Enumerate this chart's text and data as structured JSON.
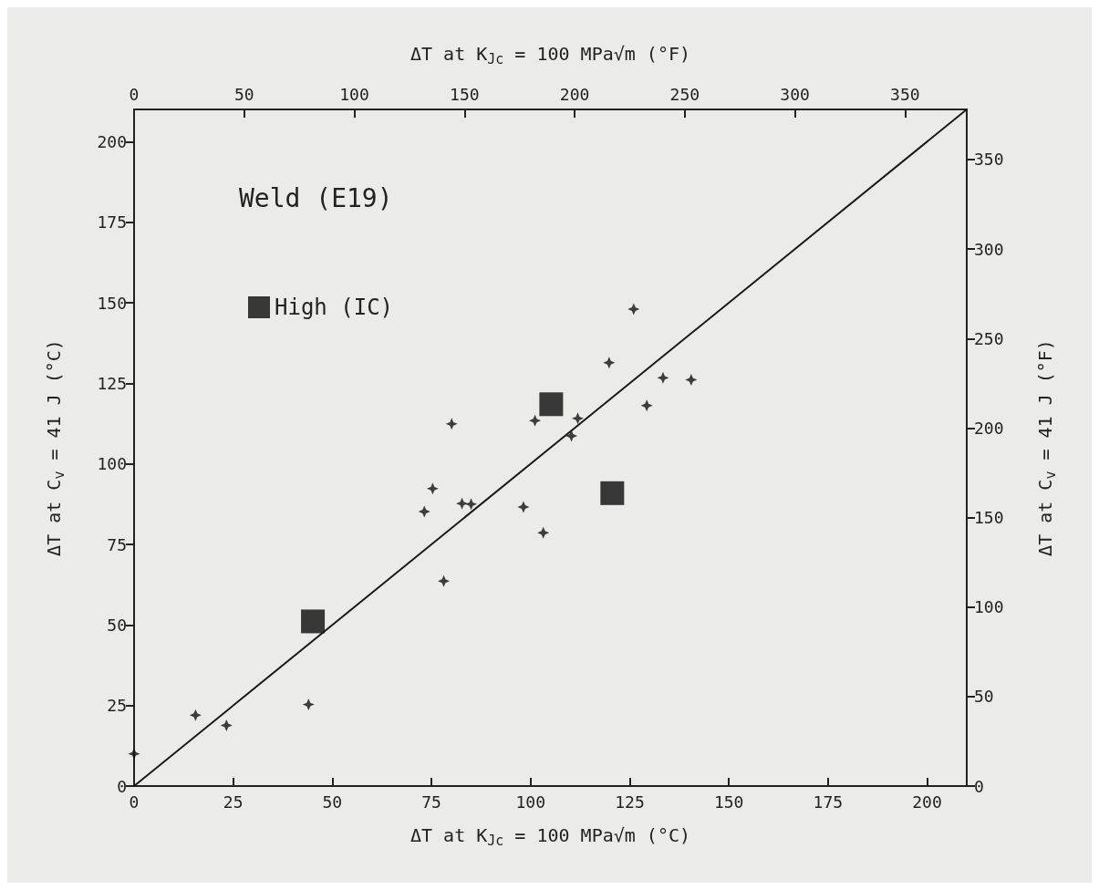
{
  "chart_data": {
    "type": "scatter",
    "title": "Weld (E19)",
    "xlabel": "ΔT at K$_{Jc}$ = 100 MPa√m (°C)",
    "ylabel": "ΔT at C$_{v}$ = 41 J (°C)",
    "x2label": "ΔT at K$_{Jc}$ = 100 MPa√m (°F)",
    "y2label": "ΔT at C$_{v}$ = 41 J (°F)",
    "xlim": [
      0,
      210
    ],
    "xticks": [
      0,
      25,
      50,
      75,
      100,
      125,
      150,
      175,
      200
    ],
    "ylim": [
      0,
      210
    ],
    "yticks": [
      0,
      25,
      50,
      75,
      100,
      125,
      150,
      175,
      200
    ],
    "x2lim": [
      0,
      378
    ],
    "x2ticks": [
      0,
      50,
      100,
      150,
      200,
      250,
      300,
      350
    ],
    "y2lim": [
      0,
      378
    ],
    "y2ticks": [
      0,
      50,
      100,
      150,
      200,
      250,
      300,
      350
    ],
    "grid": false,
    "legend": "top left",
    "series": [
      {
        "type": "line",
        "color": "#1a1a1a",
        "x": [
          0,
          210
        ],
        "values": [
          0,
          210
        ],
        "marker": "none",
        "line_style": "solid"
      },
      {
        "color": "#111111",
        "marker": "star",
        "x": [
          0,
          15.5,
          23.3,
          44,
          73.2,
          75.3,
          82.7,
          85,
          78.1,
          80.1,
          98.2,
          103.2,
          101.1,
          110.3,
          111.9,
          119.8,
          129.3,
          133.4,
          140.5,
          126
        ],
        "values": [
          10,
          22,
          18.8,
          25.3,
          85.2,
          92.3,
          87.7,
          87.5,
          63.6,
          112.4,
          86.6,
          78.6,
          113.4,
          108.7,
          114.1,
          131.4,
          118.1,
          126.7,
          126.1,
          148
        ]
      },
      {
        "name": "High (IC)",
        "color": "#0a0a0a",
        "marker": "square",
        "x": [
          45.1,
          105.2,
          120.6
        ],
        "values": [
          51.1,
          118.5,
          90.9
        ]
      }
    ]
  }
}
